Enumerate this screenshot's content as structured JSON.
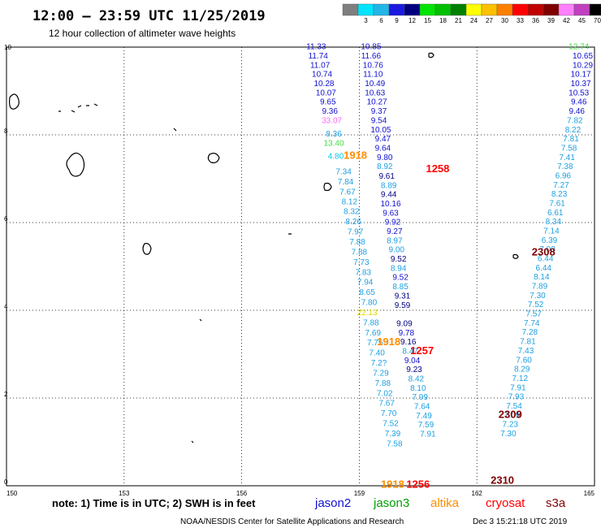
{
  "header": {
    "title": "12:00 – 23:59 UTC 11/25/2019",
    "subtitle": "12 hour collection of altimeter wave heights"
  },
  "legend": {
    "unit_label": "(ft)",
    "bins": [
      {
        "label": "",
        "color": "#7f7f7f"
      },
      {
        "label": "3",
        "color": "#00e5ff"
      },
      {
        "label": "6",
        "color": "#22b6e8"
      },
      {
        "label": "9",
        "color": "#1a1ae0"
      },
      {
        "label": "12",
        "color": "#00007f"
      },
      {
        "label": "15",
        "color": "#00e500"
      },
      {
        "label": "18",
        "color": "#00c000"
      },
      {
        "label": "21",
        "color": "#008000"
      },
      {
        "label": "24",
        "color": "#ffff00"
      },
      {
        "label": "27",
        "color": "#ffc000"
      },
      {
        "label": "30",
        "color": "#ff8000"
      },
      {
        "label": "33",
        "color": "#ff0000"
      },
      {
        "label": "36",
        "color": "#c00000"
      },
      {
        "label": "39",
        "color": "#800000"
      },
      {
        "label": "42",
        "color": "#ff80ff"
      },
      {
        "label": "45",
        "color": "#c040c0"
      },
      {
        "label": "70",
        "color": "#000000"
      }
    ]
  },
  "map": {
    "lon_range": [
      150,
      165
    ],
    "lat_range": [
      0,
      10
    ],
    "x_ticks": [
      150,
      153,
      156,
      159,
      162,
      165
    ],
    "y_ticks": [
      0,
      2,
      4,
      6,
      8,
      10
    ],
    "tick_labels_x": [
      "150",
      "153",
      "156",
      "159",
      "162",
      "165"
    ],
    "tick_labels_y": [
      "0",
      "2",
      "4",
      "6",
      "8",
      "10"
    ]
  },
  "colors": {
    "cyan": "#00c8e6",
    "sky": "#1ea0e0",
    "blue": "#1010d0",
    "navy": "#000080",
    "lightgreen": "#44dd44",
    "yellow": "#d8d800",
    "orange": "#ff8c00",
    "red": "#ff0000",
    "darkred": "#800000",
    "magenta": "#ff66ff"
  },
  "tracks": [
    {
      "label": "1258",
      "lon": 161.0,
      "lat": 7.15,
      "color": "#ff0000"
    },
    {
      "label": "1257",
      "lon": 160.6,
      "lat": 3.0,
      "color": "#ff0000"
    },
    {
      "label": "1256",
      "lon": 160.5,
      "lat": -0.05,
      "color": "#ff0000"
    },
    {
      "label": "2308",
      "lon": 163.7,
      "lat": 5.25,
      "color": "#800000"
    },
    {
      "label": "2309",
      "lon": 162.85,
      "lat": 1.55,
      "color": "#800000"
    },
    {
      "label": "2310",
      "lon": 162.65,
      "lat": 0.05,
      "color": "#800000"
    },
    {
      "label": "1918",
      "lon": 158.9,
      "lat": 7.45,
      "color": "#ff8c00"
    },
    {
      "label": "1918",
      "lon": 159.75,
      "lat": 3.2,
      "color": "#ff8c00"
    },
    {
      "label": "1918",
      "lon": 159.85,
      "lat": -0.05,
      "color": "#ff8c00"
    }
  ],
  "waves": [
    {
      "v": "11.33",
      "lon": 157.9,
      "lat": 9.95,
      "c": "#1010d0"
    },
    {
      "v": "11.74",
      "lon": 157.95,
      "lat": 9.74,
      "c": "#1010d0"
    },
    {
      "v": "11.07",
      "lon": 158.0,
      "lat": 9.53,
      "c": "#1010d0"
    },
    {
      "v": "10.74",
      "lon": 158.05,
      "lat": 9.32,
      "c": "#1010d0"
    },
    {
      "v": "10.28",
      "lon": 158.1,
      "lat": 9.11,
      "c": "#1010d0"
    },
    {
      "v": "10.07",
      "lon": 158.15,
      "lat": 8.9,
      "c": "#1010d0"
    },
    {
      "v": "9.65",
      "lon": 158.2,
      "lat": 8.69,
      "c": "#1010d0"
    },
    {
      "v": "9.36",
      "lon": 158.25,
      "lat": 8.48,
      "c": "#1010d0"
    },
    {
      "v": "33.07",
      "lon": 158.3,
      "lat": 8.27,
      "c": "#ff66ff"
    },
    {
      "v": "8.36",
      "lon": 158.35,
      "lat": 7.96,
      "c": "#1ea0e0"
    },
    {
      "v": "13.40",
      "lon": 158.35,
      "lat": 7.75,
      "c": "#44dd44"
    },
    {
      "v": "4.80",
      "lon": 158.4,
      "lat": 7.45,
      "c": "#00c8e6"
    },
    {
      "v": "7.34",
      "lon": 158.6,
      "lat": 7.1,
      "c": "#1ea0e0"
    },
    {
      "v": "7.84",
      "lon": 158.65,
      "lat": 6.87,
      "c": "#1ea0e0"
    },
    {
      "v": "7.67",
      "lon": 158.7,
      "lat": 6.64,
      "c": "#1ea0e0"
    },
    {
      "v": "8.12",
      "lon": 158.75,
      "lat": 6.42,
      "c": "#1ea0e0"
    },
    {
      "v": "8.32",
      "lon": 158.8,
      "lat": 6.19,
      "c": "#1ea0e0"
    },
    {
      "v": "8.26",
      "lon": 158.85,
      "lat": 5.96,
      "c": "#1ea0e0"
    },
    {
      "v": "7.97",
      "lon": 158.9,
      "lat": 5.73,
      "c": "#1ea0e0"
    },
    {
      "v": "7.88",
      "lon": 158.95,
      "lat": 5.5,
      "c": "#1ea0e0"
    },
    {
      "v": "7.88",
      "lon": 159.0,
      "lat": 5.27,
      "c": "#1ea0e0"
    },
    {
      "v": "7.73",
      "lon": 159.05,
      "lat": 5.04,
      "c": "#1ea0e0"
    },
    {
      "v": "7.83",
      "lon": 159.1,
      "lat": 4.81,
      "c": "#1ea0e0"
    },
    {
      "v": "7.94",
      "lon": 159.15,
      "lat": 4.58,
      "c": "#1ea0e0"
    },
    {
      "v": "8.65",
      "lon": 159.2,
      "lat": 4.35,
      "c": "#1ea0e0"
    },
    {
      "v": "7.80",
      "lon": 159.25,
      "lat": 4.12,
      "c": "#1ea0e0"
    },
    {
      "v": "22.13",
      "lon": 159.2,
      "lat": 3.89,
      "c": "#d8d800"
    },
    {
      "v": "7.88",
      "lon": 159.3,
      "lat": 3.66,
      "c": "#1ea0e0"
    },
    {
      "v": "7.69",
      "lon": 159.35,
      "lat": 3.43,
      "c": "#1ea0e0"
    },
    {
      "v": "7.75",
      "lon": 159.4,
      "lat": 3.2,
      "c": "#1ea0e0"
    },
    {
      "v": "7.40",
      "lon": 159.45,
      "lat": 2.97,
      "c": "#1ea0e0"
    },
    {
      "v": "7.2?",
      "lon": 159.5,
      "lat": 2.74,
      "c": "#1ea0e0"
    },
    {
      "v": "7.29",
      "lon": 159.55,
      "lat": 2.51,
      "c": "#1ea0e0"
    },
    {
      "v": "7.88",
      "lon": 159.6,
      "lat": 2.28,
      "c": "#1ea0e0"
    },
    {
      "v": "7.02",
      "lon": 159.65,
      "lat": 2.05,
      "c": "#1ea0e0"
    },
    {
      "v": "7.67",
      "lon": 159.7,
      "lat": 1.82,
      "c": "#1ea0e0"
    },
    {
      "v": "7.70",
      "lon": 159.75,
      "lat": 1.59,
      "c": "#1ea0e0"
    },
    {
      "v": "7.52",
      "lon": 159.8,
      "lat": 1.36,
      "c": "#1ea0e0"
    },
    {
      "v": "7.39",
      "lon": 159.85,
      "lat": 1.13,
      "c": "#1ea0e0"
    },
    {
      "v": "7.58",
      "lon": 159.9,
      "lat": 0.9,
      "c": "#1ea0e0"
    },
    {
      "v": "10.85",
      "lon": 159.3,
      "lat": 9.95,
      "c": "#1010d0"
    },
    {
      "v": "11.66",
      "lon": 159.3,
      "lat": 9.74,
      "c": "#1010d0"
    },
    {
      "v": "10.76",
      "lon": 159.35,
      "lat": 9.53,
      "c": "#1010d0"
    },
    {
      "v": "11.10",
      "lon": 159.35,
      "lat": 9.32,
      "c": "#1010d0"
    },
    {
      "v": "10.49",
      "lon": 159.4,
      "lat": 9.11,
      "c": "#1010d0"
    },
    {
      "v": "10.63",
      "lon": 159.4,
      "lat": 8.9,
      "c": "#1010d0"
    },
    {
      "v": "10.27",
      "lon": 159.45,
      "lat": 8.69,
      "c": "#1010d0"
    },
    {
      "v": "9.37",
      "lon": 159.5,
      "lat": 8.48,
      "c": "#1010d0"
    },
    {
      "v": "9.54",
      "lon": 159.5,
      "lat": 8.27,
      "c": "#1010d0"
    },
    {
      "v": "10.05",
      "lon": 159.55,
      "lat": 8.06,
      "c": "#1010d0"
    },
    {
      "v": "9.47",
      "lon": 159.6,
      "lat": 7.85,
      "c": "#1010d0"
    },
    {
      "v": "9.64",
      "lon": 159.6,
      "lat": 7.64,
      "c": "#1010d0"
    },
    {
      "v": "9.80",
      "lon": 159.65,
      "lat": 7.43,
      "c": "#1010d0"
    },
    {
      "v": "8.92",
      "lon": 159.65,
      "lat": 7.22,
      "c": "#1ea0e0"
    },
    {
      "v": "9.61",
      "lon": 159.7,
      "lat": 7.0,
      "c": "#000080"
    },
    {
      "v": "8.89",
      "lon": 159.75,
      "lat": 6.79,
      "c": "#1ea0e0"
    },
    {
      "v": "9.44",
      "lon": 159.75,
      "lat": 6.58,
      "c": "#000080"
    },
    {
      "v": "10.16",
      "lon": 159.8,
      "lat": 6.37,
      "c": "#1010d0"
    },
    {
      "v": "9.63",
      "lon": 159.8,
      "lat": 6.16,
      "c": "#1010d0"
    },
    {
      "v": "9.92",
      "lon": 159.85,
      "lat": 5.95,
      "c": "#1010d0"
    },
    {
      "v": "9.27",
      "lon": 159.9,
      "lat": 5.74,
      "c": "#1010d0"
    },
    {
      "v": "8.97",
      "lon": 159.9,
      "lat": 5.53,
      "c": "#1ea0e0"
    },
    {
      "v": "9.00",
      "lon": 159.95,
      "lat": 5.32,
      "c": "#1ea0e0"
    },
    {
      "v": "9.52",
      "lon": 160.0,
      "lat": 5.11,
      "c": "#000080"
    },
    {
      "v": "8.94",
      "lon": 160.0,
      "lat": 4.9,
      "c": "#1ea0e0"
    },
    {
      "v": "9.52",
      "lon": 160.05,
      "lat": 4.69,
      "c": "#1010d0"
    },
    {
      "v": "8.85",
      "lon": 160.05,
      "lat": 4.48,
      "c": "#1ea0e0"
    },
    {
      "v": "9.31",
      "lon": 160.1,
      "lat": 4.27,
      "c": "#000080"
    },
    {
      "v": "9.59",
      "lon": 160.1,
      "lat": 4.06,
      "c": "#000080"
    },
    {
      "v": "9.09",
      "lon": 160.15,
      "lat": 3.64,
      "c": "#000080"
    },
    {
      "v": "9.78",
      "lon": 160.2,
      "lat": 3.43,
      "c": "#1010d0"
    },
    {
      "v": "9.16",
      "lon": 160.25,
      "lat": 3.22,
      "c": "#000080"
    },
    {
      "v": "8.47",
      "lon": 160.3,
      "lat": 3.01,
      "c": "#1ea0e0"
    },
    {
      "v": "9.04",
      "lon": 160.35,
      "lat": 2.8,
      "c": "#1010d0"
    },
    {
      "v": "9.23",
      "lon": 160.4,
      "lat": 2.59,
      "c": "#000080"
    },
    {
      "v": "8.42",
      "lon": 160.45,
      "lat": 2.38,
      "c": "#1ea0e0"
    },
    {
      "v": "8.10",
      "lon": 160.5,
      "lat": 2.17,
      "c": "#1ea0e0"
    },
    {
      "v": "7.99",
      "lon": 160.55,
      "lat": 1.96,
      "c": "#1ea0e0"
    },
    {
      "v": "7.64",
      "lon": 160.6,
      "lat": 1.75,
      "c": "#1ea0e0"
    },
    {
      "v": "7.49",
      "lon": 160.65,
      "lat": 1.54,
      "c": "#1ea0e0"
    },
    {
      "v": "7.59",
      "lon": 160.7,
      "lat": 1.33,
      "c": "#1ea0e0"
    },
    {
      "v": "7.91",
      "lon": 160.75,
      "lat": 1.12,
      "c": "#1ea0e0"
    },
    {
      "v": "12.74",
      "lon": 164.6,
      "lat": 9.95,
      "c": "#44dd44"
    },
    {
      "v": "10.65",
      "lon": 164.7,
      "lat": 9.74,
      "c": "#1010d0"
    },
    {
      "v": "10.29",
      "lon": 164.7,
      "lat": 9.53,
      "c": "#1010d0"
    },
    {
      "v": "10.17",
      "lon": 164.65,
      "lat": 9.32,
      "c": "#1010d0"
    },
    {
      "v": "10.37",
      "lon": 164.65,
      "lat": 9.11,
      "c": "#1010d0"
    },
    {
      "v": "10.53",
      "lon": 164.6,
      "lat": 8.9,
      "c": "#1010d0"
    },
    {
      "v": "9.46",
      "lon": 164.6,
      "lat": 8.69,
      "c": "#1010d0"
    },
    {
      "v": "9.46",
      "lon": 164.55,
      "lat": 8.48,
      "c": "#1010d0"
    },
    {
      "v": "7.82",
      "lon": 164.5,
      "lat": 8.27,
      "c": "#1ea0e0"
    },
    {
      "v": "8.22",
      "lon": 164.45,
      "lat": 8.06,
      "c": "#1ea0e0"
    },
    {
      "v": "7.81",
      "lon": 164.4,
      "lat": 7.85,
      "c": "#1ea0e0"
    },
    {
      "v": "7.58",
      "lon": 164.35,
      "lat": 7.64,
      "c": "#1ea0e0"
    },
    {
      "v": "7.41",
      "lon": 164.3,
      "lat": 7.43,
      "c": "#1ea0e0"
    },
    {
      "v": "7.38",
      "lon": 164.25,
      "lat": 7.22,
      "c": "#1ea0e0"
    },
    {
      "v": "6.96",
      "lon": 164.2,
      "lat": 7.01,
      "c": "#1ea0e0"
    },
    {
      "v": "7.27",
      "lon": 164.15,
      "lat": 6.8,
      "c": "#1ea0e0"
    },
    {
      "v": "8.23",
      "lon": 164.1,
      "lat": 6.59,
      "c": "#1ea0e0"
    },
    {
      "v": "7.61",
      "lon": 164.05,
      "lat": 6.38,
      "c": "#1ea0e0"
    },
    {
      "v": "6.61",
      "lon": 164.0,
      "lat": 6.17,
      "c": "#1ea0e0"
    },
    {
      "v": "8.34",
      "lon": 163.95,
      "lat": 5.96,
      "c": "#1ea0e0"
    },
    {
      "v": "7.14",
      "lon": 163.9,
      "lat": 5.75,
      "c": "#1ea0e0"
    },
    {
      "v": "6.39",
      "lon": 163.85,
      "lat": 5.54,
      "c": "#1ea0e0"
    },
    {
      "v": "7.03",
      "lon": 163.8,
      "lat": 5.33,
      "c": "#1ea0e0"
    },
    {
      "v": "6.44",
      "lon": 163.75,
      "lat": 5.12,
      "c": "#1ea0e0"
    },
    {
      "v": "6.44",
      "lon": 163.7,
      "lat": 4.91,
      "c": "#1ea0e0"
    },
    {
      "v": "8.14",
      "lon": 163.65,
      "lat": 4.7,
      "c": "#1ea0e0"
    },
    {
      "v": "7.89",
      "lon": 163.6,
      "lat": 4.49,
      "c": "#1ea0e0"
    },
    {
      "v": "7.30",
      "lon": 163.55,
      "lat": 4.28,
      "c": "#1ea0e0"
    },
    {
      "v": "7.52",
      "lon": 163.5,
      "lat": 4.07,
      "c": "#1ea0e0"
    },
    {
      "v": "7.57",
      "lon": 163.45,
      "lat": 3.86,
      "c": "#1ea0e0"
    },
    {
      "v": "7.74",
      "lon": 163.4,
      "lat": 3.65,
      "c": "#1ea0e0"
    },
    {
      "v": "7.28",
      "lon": 163.35,
      "lat": 3.44,
      "c": "#1ea0e0"
    },
    {
      "v": "7.81",
      "lon": 163.3,
      "lat": 3.23,
      "c": "#1ea0e0"
    },
    {
      "v": "7.43",
      "lon": 163.25,
      "lat": 3.02,
      "c": "#1ea0e0"
    },
    {
      "v": "7.60",
      "lon": 163.2,
      "lat": 2.81,
      "c": "#1ea0e0"
    },
    {
      "v": "8.29",
      "lon": 163.15,
      "lat": 2.6,
      "c": "#1ea0e0"
    },
    {
      "v": "7.12",
      "lon": 163.1,
      "lat": 2.39,
      "c": "#1ea0e0"
    },
    {
      "v": "7.91",
      "lon": 163.05,
      "lat": 2.18,
      "c": "#1ea0e0"
    },
    {
      "v": "7.93",
      "lon": 163.0,
      "lat": 1.97,
      "c": "#1ea0e0"
    },
    {
      "v": "7.54",
      "lon": 162.95,
      "lat": 1.76,
      "c": "#1ea0e0"
    },
    {
      "v": "7.09",
      "lon": 162.9,
      "lat": 1.55,
      "c": "#1ea0e0"
    },
    {
      "v": "7.23",
      "lon": 162.85,
      "lat": 1.34,
      "c": "#1ea0e0"
    },
    {
      "v": "7.30",
      "lon": 162.8,
      "lat": 1.13,
      "c": "#1ea0e0"
    }
  ],
  "footer": {
    "note": "note:  1) Time is in UTC;  2) SWH is in feet",
    "satellites": [
      {
        "name": "jason2",
        "color": "#1010d0"
      },
      {
        "name": "jason3",
        "color": "#00a000"
      },
      {
        "name": "altika",
        "color": "#ff8c00"
      },
      {
        "name": "cryosat",
        "color": "#ff0000"
      },
      {
        "name": "s3a",
        "color": "#800000"
      }
    ],
    "credit": "NOAA/NESDIS Center for Satellite Applications and Research",
    "timestamp": "Dec  3 15:21:18 UTC 2019"
  }
}
